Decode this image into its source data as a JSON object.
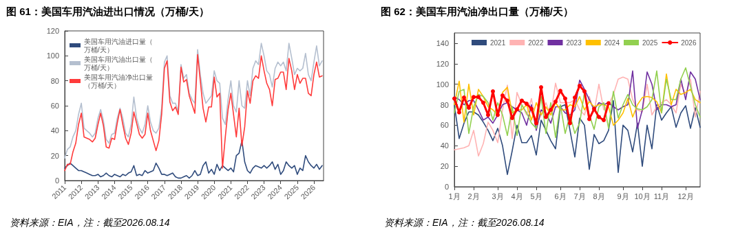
{
  "chart_data": [
    {
      "type": "line",
      "title": "图 61：美国车用汽油进出口情况（万桶/天）",
      "annotations": [
        "资料来源：EIA，注：截至2026.08.14"
      ],
      "legend": "top left",
      "marker": "none",
      "line_style": "solid",
      "xlim": [
        "2011-01",
        "2026-08"
      ],
      "xticks": [
        "2011",
        "2012",
        "2013",
        "2014",
        "2015",
        "2016",
        "2017",
        "2018",
        "2019",
        "2020",
        "2021",
        "2022",
        "2023",
        "2024",
        "2025",
        "2026"
      ],
      "ylim": [
        0,
        120
      ],
      "yticks": [
        0,
        20,
        40,
        60,
        80,
        100,
        120
      ],
      "x": [
        "2011-01",
        "2011-03",
        "2011-05",
        "2011-07",
        "2011-09",
        "2011-11",
        "2012-01",
        "2012-03",
        "2012-05",
        "2012-07",
        "2012-09",
        "2012-11",
        "2013-01",
        "2013-03",
        "2013-05",
        "2013-07",
        "2013-09",
        "2013-11",
        "2014-01",
        "2014-03",
        "2014-05",
        "2014-07",
        "2014-09",
        "2014-11",
        "2015-01",
        "2015-03",
        "2015-05",
        "2015-07",
        "2015-09",
        "2015-11",
        "2016-01",
        "2016-03",
        "2016-05",
        "2016-07",
        "2016-09",
        "2016-11",
        "2017-01",
        "2017-03",
        "2017-05",
        "2017-07",
        "2017-09",
        "2017-11",
        "2018-01",
        "2018-03",
        "2018-05",
        "2018-07",
        "2018-09",
        "2018-11",
        "2019-01",
        "2019-03",
        "2019-05",
        "2019-07",
        "2019-09",
        "2019-11",
        "2020-01",
        "2020-03",
        "2020-05",
        "2020-07",
        "2020-09",
        "2020-11",
        "2021-01",
        "2021-03",
        "2021-05",
        "2021-07",
        "2021-09",
        "2021-11",
        "2022-01",
        "2022-03",
        "2022-05",
        "2022-07",
        "2022-09",
        "2022-11",
        "2023-01",
        "2023-03",
        "2023-05",
        "2023-07",
        "2023-09",
        "2023-11",
        "2024-01",
        "2024-03",
        "2024-05",
        "2024-07",
        "2024-09",
        "2024-11",
        "2025-01",
        "2025-03",
        "2025-05",
        "2025-07",
        "2025-09",
        "2025-11",
        "2026-01",
        "2026-03",
        "2026-05",
        "2026-07"
      ],
      "series": [
        {
          "name": "美国车用汽油进口量（万桶/天）",
          "color": "#2f4b7c",
          "values": [
            10,
            12,
            14,
            12,
            10,
            8,
            8,
            7,
            6,
            5,
            4,
            4,
            5,
            3,
            4,
            6,
            4,
            3,
            5,
            4,
            3,
            5,
            4,
            6,
            7,
            12,
            4,
            5,
            4,
            8,
            6,
            7,
            8,
            14,
            10,
            5,
            5,
            4,
            5,
            6,
            3,
            2,
            2,
            3,
            4,
            2,
            4,
            8,
            4,
            5,
            12,
            15,
            6,
            9,
            5,
            13,
            8,
            12,
            10,
            8,
            10,
            7,
            20,
            22,
            32,
            15,
            8,
            6,
            10,
            12,
            11,
            10,
            12,
            10,
            12,
            15,
            9,
            13,
            5,
            8,
            15,
            12,
            10,
            12,
            5,
            10,
            8,
            20,
            15,
            12,
            10,
            13,
            9,
            12
          ]
        },
        {
          "name": "美国车用汽油出口量（万桶/天）",
          "color": "#b4bfcf",
          "values": [
            18,
            25,
            27,
            35,
            40,
            53,
            62,
            42,
            40,
            38,
            35,
            38,
            50,
            57,
            48,
            33,
            30,
            37,
            38,
            50,
            58,
            50,
            38,
            35,
            45,
            67,
            50,
            42,
            38,
            45,
            60,
            47,
            40,
            38,
            42,
            58,
            95,
            100,
            68,
            62,
            62,
            55,
            93,
            82,
            85,
            70,
            65,
            62,
            105,
            85,
            70,
            62,
            65,
            68,
            88,
            80,
            78,
            50,
            45,
            65,
            80,
            60,
            55,
            80,
            60,
            58,
            80,
            68,
            90,
            96,
            93,
            110,
            100,
            88,
            85,
            75,
            90,
            95,
            92,
            95,
            88,
            110,
            98,
            85,
            90,
            88,
            90,
            102,
            85,
            80,
            95,
            108,
            92,
            96
          ]
        },
        {
          "name": "美国车用汽油净出口量（万桶/天）",
          "color": "#ff3b3b",
          "values": [
            8,
            13,
            13,
            23,
            30,
            45,
            54,
            35,
            34,
            33,
            31,
            34,
            45,
            54,
            44,
            27,
            26,
            34,
            33,
            46,
            57,
            45,
            34,
            29,
            38,
            55,
            46,
            37,
            34,
            37,
            54,
            40,
            32,
            24,
            32,
            53,
            90,
            96,
            63,
            56,
            59,
            53,
            91,
            79,
            81,
            68,
            61,
            54,
            101,
            80,
            58,
            47,
            59,
            59,
            83,
            67,
            70,
            10,
            35,
            57,
            70,
            53,
            35,
            58,
            28,
            43,
            72,
            62,
            80,
            84,
            82,
            100,
            88,
            78,
            73,
            60,
            81,
            82,
            87,
            87,
            73,
            98,
            88,
            73,
            85,
            78,
            82,
            82,
            70,
            68,
            85,
            95,
            83,
            84
          ]
        }
      ]
    },
    {
      "type": "line",
      "title": "图 62：美国车用汽油净出口量（万桶/天）",
      "annotations": [
        "资料来源：EIA，注：截至2026.08.14"
      ],
      "legend": "top",
      "marker": "none",
      "line_style": "solid",
      "categories": [
        "1月",
        null,
        null,
        null,
        "2月",
        null,
        null,
        null,
        null,
        "3月",
        null,
        null,
        null,
        "4月",
        null,
        null,
        null,
        "5月",
        null,
        null,
        null,
        null,
        "6月",
        null,
        null,
        null,
        "7月",
        null,
        null,
        null,
        "8月",
        null,
        null,
        null,
        null,
        "9月",
        null,
        null,
        null,
        "10月",
        null,
        null,
        null,
        "11月",
        null,
        null,
        null,
        null,
        "12月",
        null,
        null,
        null
      ],
      "ylim": [
        0,
        150
      ],
      "yticks": [
        0,
        20,
        40,
        60,
        80,
        100,
        120,
        140
      ],
      "series": [
        {
          "name": "2021",
          "color": "#2f4b7c",
          "values": [
            80,
            47,
            62,
            73,
            73,
            70,
            63,
            55,
            45,
            57,
            40,
            12,
            35,
            60,
            43,
            43,
            50,
            31,
            65,
            55,
            45,
            37,
            78,
            80,
            55,
            29,
            67,
            60,
            17,
            51,
            42,
            45,
            55,
            84,
            14,
            60,
            55,
            34,
            62,
            20,
            60,
            37,
            80,
            65,
            72,
            78,
            58,
            72,
            79,
            57,
            77,
            58
          ]
        },
        {
          "name": "2022",
          "color": "#ffb3b3",
          "values": [
            36,
            37,
            38,
            40,
            55,
            30,
            42,
            63,
            55,
            43,
            75,
            99,
            47,
            92,
            80,
            70,
            86,
            60,
            70,
            82,
            70,
            101,
            82,
            82,
            82,
            85,
            75,
            70,
            88,
            73,
            100,
            75,
            80,
            90,
            105,
            107,
            105,
            85,
            75,
            73,
            100,
            70,
            78,
            82,
            85,
            80,
            72,
            100,
            90,
            105,
            68,
            93
          ]
        },
        {
          "name": "2023",
          "color": "#7030a0",
          "values": [
            88,
            85,
            80,
            84,
            84,
            75,
            65,
            68,
            62,
            70,
            80,
            82,
            78,
            75,
            72,
            60,
            80,
            55,
            75,
            72,
            62,
            78,
            78,
            72,
            70,
            75,
            104,
            95,
            85,
            75,
            82,
            80,
            82,
            78,
            75,
            78,
            80,
            113,
            57,
            75,
            112,
            100,
            75,
            80,
            80,
            78,
            80,
            105,
            85,
            112,
            105,
            85
          ]
        },
        {
          "name": "2024",
          "color": "#ffc000",
          "values": [
            80,
            103,
            63,
            100,
            70,
            95,
            88,
            78,
            75,
            70,
            92,
            97,
            72,
            75,
            75,
            80,
            65,
            82,
            70,
            78,
            70,
            82,
            75,
            75,
            80,
            78,
            88,
            75,
            83,
            78,
            80,
            80,
            78,
            60,
            65,
            72,
            86,
            68,
            80,
            87,
            88,
            87,
            83,
            72,
            110,
            80,
            95,
            90,
            92,
            95,
            85,
            82
          ]
        },
        {
          "name": "2025",
          "color": "#92d050",
          "values": [
            72,
            93,
            95,
            52,
            78,
            90,
            88,
            82,
            65,
            82,
            70,
            50,
            78,
            50,
            80,
            72,
            62,
            57,
            88,
            52,
            82,
            48,
            80,
            52,
            70,
            52,
            62,
            92,
            70,
            56,
            78,
            82,
            57,
            93,
            67,
            80,
            90,
            80,
            76,
            75,
            78,
            85,
            113,
            72,
            105,
            85,
            85,
            105,
            116,
            98,
            80,
            68
          ]
        },
        {
          "name": "2026",
          "color": "#ff0000",
          "marker": "circle",
          "values": [
            86,
            72.5,
            87,
            77,
            87.5,
            87.5,
            82,
            70,
            93,
            70,
            89,
            84,
            67,
            75.5,
            84,
            81,
            76,
            62,
            97,
            68,
            75,
            83,
            93.5,
            86,
            62,
            87,
            98.5,
            93,
            66,
            76,
            68,
            65,
            81.5,
            null,
            null,
            null,
            null,
            null,
            null,
            null,
            null,
            null,
            null,
            null,
            null,
            null,
            null,
            null,
            null,
            null,
            null,
            null
          ]
        }
      ]
    }
  ]
}
